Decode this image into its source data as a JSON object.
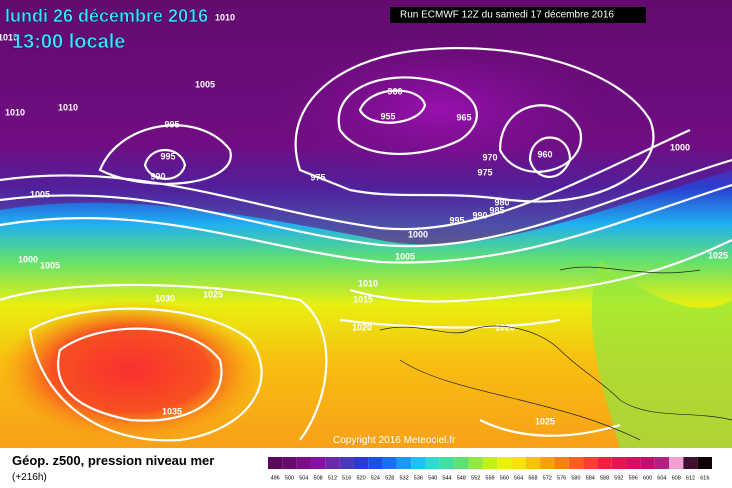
{
  "header": {
    "title": "lundi 26 décembre 2016",
    "time": "13:00 locale",
    "run": "Run ECMWF 12Z du samedi 17 décembre 2016"
  },
  "footer": {
    "title": "Géop. z500, pression niveau mer",
    "lead": "(+216h)",
    "copyright": "Copyright 2016 Meteociel.fr"
  },
  "isobar_labels": [
    "1010",
    "1010",
    "1005",
    "995",
    "995",
    "990",
    "1010",
    "1010",
    "960",
    "955",
    "965",
    "970",
    "975",
    "975",
    "960",
    "980",
    "985",
    "990",
    "995",
    "1000",
    "1005",
    "1000",
    "1005",
    "1000",
    "1005",
    "1030",
    "1025",
    "1010",
    "1015",
    "1020",
    "1020",
    "1035",
    "1025",
    "1025"
  ],
  "colorbar": {
    "labels": [
      496,
      500,
      504,
      508,
      512,
      516,
      520,
      524,
      528,
      532,
      536,
      540,
      544,
      548,
      552,
      556,
      560,
      564,
      568,
      572,
      576,
      580,
      584,
      588,
      592,
      596,
      600,
      604,
      608,
      612,
      616
    ],
    "colors": [
      "#5a0a5a",
      "#6a0a6e",
      "#7a0c86",
      "#8a10a0",
      "#6a2aa8",
      "#4a3ab8",
      "#2a3ad0",
      "#1a50e0",
      "#1a70f0",
      "#1a98f8",
      "#20c0f0",
      "#30d8d0",
      "#40e0a0",
      "#60e070",
      "#90e840",
      "#c0f020",
      "#e8f010",
      "#f8e010",
      "#f8c010",
      "#f8a010",
      "#f88010",
      "#f86020",
      "#f84030",
      "#f02040",
      "#e01850",
      "#d01060",
      "#c01070",
      "#b02080",
      "#f0a0d0",
      "#401030",
      "#100008"
    ]
  }
}
